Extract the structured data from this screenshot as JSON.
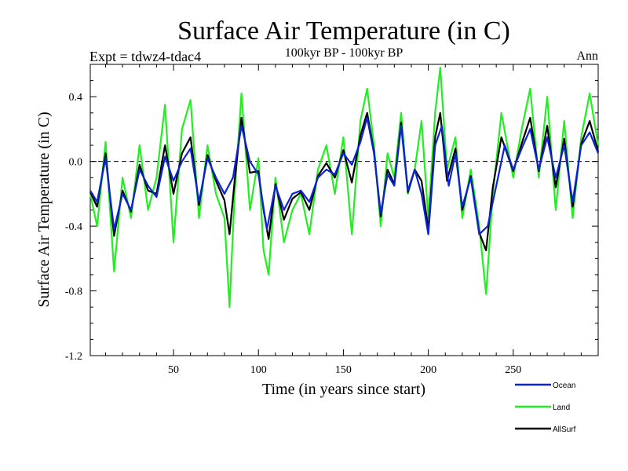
{
  "chart_data": {
    "type": "line",
    "title": "Surface Air Temperature (in C)",
    "subtitle": "100kyr BP - 100kyr BP",
    "left_label": "Expt = tdwz4-tdac4",
    "right_label": "Ann",
    "xlabel": "Time (in years since start)",
    "ylabel": "Surface Air Temperature (in C)",
    "xlim": [
      1,
      300
    ],
    "ylim": [
      -1.2,
      0.6
    ],
    "xticks": [
      50,
      100,
      150,
      200,
      250
    ],
    "xtick_labels": [
      "50",
      "100",
      "150",
      "200",
      "250"
    ],
    "yticks": [
      -1.2,
      -0.8,
      -0.4,
      0.0,
      0.4
    ],
    "ytick_labels": [
      "-1.2",
      "-0.8",
      "-0.4",
      "0.0",
      "0.4"
    ],
    "reference_line": 0.0,
    "series": [
      {
        "name": "Ocean",
        "color": "#0a22d8",
        "points": [
          [
            1,
            -0.18
          ],
          [
            5,
            -0.25
          ],
          [
            10,
            0.02
          ],
          [
            15,
            -0.42
          ],
          [
            20,
            -0.2
          ],
          [
            25,
            -0.3
          ],
          [
            30,
            -0.05
          ],
          [
            35,
            -0.15
          ],
          [
            40,
            -0.22
          ],
          [
            45,
            0.03
          ],
          [
            50,
            -0.12
          ],
          [
            55,
            0.0
          ],
          [
            60,
            0.08
          ],
          [
            65,
            -0.25
          ],
          [
            70,
            0.02
          ],
          [
            75,
            -0.1
          ],
          [
            80,
            -0.2
          ],
          [
            85,
            -0.1
          ],
          [
            90,
            0.22
          ],
          [
            95,
            0.0
          ],
          [
            100,
            -0.08
          ],
          [
            105,
            -0.42
          ],
          [
            110,
            -0.15
          ],
          [
            115,
            -0.3
          ],
          [
            120,
            -0.2
          ],
          [
            125,
            -0.18
          ],
          [
            130,
            -0.25
          ],
          [
            135,
            -0.1
          ],
          [
            140,
            -0.05
          ],
          [
            145,
            -0.08
          ],
          [
            150,
            0.05
          ],
          [
            155,
            -0.02
          ],
          [
            160,
            0.12
          ],
          [
            164,
            0.27
          ],
          [
            168,
            0.05
          ],
          [
            172,
            -0.32
          ],
          [
            176,
            -0.08
          ],
          [
            180,
            -0.15
          ],
          [
            184,
            0.22
          ],
          [
            188,
            -0.18
          ],
          [
            192,
            -0.05
          ],
          [
            196,
            -0.2
          ],
          [
            200,
            -0.45
          ],
          [
            204,
            0.1
          ],
          [
            208,
            0.22
          ],
          [
            212,
            -0.15
          ],
          [
            216,
            0.05
          ],
          [
            220,
            -0.28
          ],
          [
            225,
            -0.1
          ],
          [
            230,
            -0.45
          ],
          [
            235,
            -0.4
          ],
          [
            240,
            -0.15
          ],
          [
            245,
            0.1
          ],
          [
            250,
            -0.05
          ],
          [
            255,
            0.08
          ],
          [
            260,
            0.2
          ],
          [
            265,
            -0.05
          ],
          [
            270,
            0.15
          ],
          [
            275,
            -0.1
          ],
          [
            280,
            0.1
          ],
          [
            285,
            -0.25
          ],
          [
            290,
            0.1
          ],
          [
            295,
            0.18
          ],
          [
            300,
            0.05
          ]
        ]
      },
      {
        "name": "Land",
        "color": "#22ee22",
        "points": [
          [
            1,
            -0.2
          ],
          [
            5,
            -0.4
          ],
          [
            10,
            0.12
          ],
          [
            15,
            -0.68
          ],
          [
            20,
            -0.1
          ],
          [
            25,
            -0.35
          ],
          [
            30,
            0.1
          ],
          [
            35,
            -0.3
          ],
          [
            40,
            -0.1
          ],
          [
            45,
            0.35
          ],
          [
            50,
            -0.5
          ],
          [
            55,
            0.2
          ],
          [
            60,
            0.38
          ],
          [
            65,
            -0.35
          ],
          [
            70,
            0.1
          ],
          [
            75,
            -0.2
          ],
          [
            80,
            -0.35
          ],
          [
            83,
            -0.9
          ],
          [
            86,
            -0.2
          ],
          [
            90,
            0.42
          ],
          [
            95,
            -0.3
          ],
          [
            100,
            0.02
          ],
          [
            103,
            -0.55
          ],
          [
            106,
            -0.7
          ],
          [
            110,
            -0.1
          ],
          [
            115,
            -0.5
          ],
          [
            120,
            -0.3
          ],
          [
            125,
            -0.2
          ],
          [
            130,
            -0.45
          ],
          [
            135,
            -0.05
          ],
          [
            140,
            0.1
          ],
          [
            145,
            -0.2
          ],
          [
            150,
            0.15
          ],
          [
            155,
            -0.45
          ],
          [
            160,
            0.25
          ],
          [
            164,
            0.45
          ],
          [
            168,
            0.1
          ],
          [
            172,
            -0.4
          ],
          [
            176,
            0.05
          ],
          [
            180,
            -0.1
          ],
          [
            184,
            0.3
          ],
          [
            188,
            -0.2
          ],
          [
            192,
            -0.05
          ],
          [
            196,
            0.25
          ],
          [
            200,
            -0.35
          ],
          [
            204,
            0.3
          ],
          [
            207,
            0.58
          ],
          [
            211,
            -0.05
          ],
          [
            216,
            0.15
          ],
          [
            220,
            -0.35
          ],
          [
            225,
            -0.05
          ],
          [
            230,
            -0.4
          ],
          [
            234,
            -0.82
          ],
          [
            238,
            -0.2
          ],
          [
            243,
            0.3
          ],
          [
            250,
            -0.1
          ],
          [
            255,
            0.2
          ],
          [
            260,
            0.45
          ],
          [
            265,
            -0.1
          ],
          [
            270,
            0.4
          ],
          [
            275,
            -0.3
          ],
          [
            280,
            0.25
          ],
          [
            285,
            -0.35
          ],
          [
            290,
            0.15
          ],
          [
            295,
            0.42
          ],
          [
            300,
            0.1
          ]
        ]
      },
      {
        "name": "AllSurf",
        "color": "#000000",
        "points": [
          [
            1,
            -0.19
          ],
          [
            5,
            -0.28
          ],
          [
            10,
            0.05
          ],
          [
            15,
            -0.46
          ],
          [
            20,
            -0.18
          ],
          [
            25,
            -0.31
          ],
          [
            30,
            -0.02
          ],
          [
            35,
            -0.18
          ],
          [
            40,
            -0.2
          ],
          [
            45,
            0.1
          ],
          [
            50,
            -0.2
          ],
          [
            55,
            0.05
          ],
          [
            60,
            0.15
          ],
          [
            65,
            -0.27
          ],
          [
            70,
            0.04
          ],
          [
            75,
            -0.12
          ],
          [
            80,
            -0.24
          ],
          [
            83,
            -0.45
          ],
          [
            86,
            -0.12
          ],
          [
            90,
            0.27
          ],
          [
            95,
            -0.07
          ],
          [
            100,
            -0.06
          ],
          [
            103,
            -0.3
          ],
          [
            106,
            -0.48
          ],
          [
            110,
            -0.14
          ],
          [
            115,
            -0.36
          ],
          [
            120,
            -0.23
          ],
          [
            125,
            -0.19
          ],
          [
            130,
            -0.3
          ],
          [
            135,
            -0.09
          ],
          [
            140,
            -0.01
          ],
          [
            145,
            -0.1
          ],
          [
            150,
            0.07
          ],
          [
            155,
            -0.13
          ],
          [
            160,
            0.16
          ],
          [
            164,
            0.3
          ],
          [
            168,
            0.06
          ],
          [
            172,
            -0.34
          ],
          [
            176,
            -0.05
          ],
          [
            180,
            -0.14
          ],
          [
            184,
            0.24
          ],
          [
            188,
            -0.19
          ],
          [
            192,
            -0.05
          ],
          [
            196,
            -0.12
          ],
          [
            200,
            -0.42
          ],
          [
            204,
            0.15
          ],
          [
            207,
            0.3
          ],
          [
            211,
            -0.12
          ],
          [
            216,
            0.08
          ],
          [
            220,
            -0.3
          ],
          [
            225,
            -0.09
          ],
          [
            230,
            -0.44
          ],
          [
            234,
            -0.55
          ],
          [
            238,
            -0.16
          ],
          [
            243,
            0.15
          ],
          [
            250,
            -0.06
          ],
          [
            255,
            0.11
          ],
          [
            260,
            0.27
          ],
          [
            265,
            -0.06
          ],
          [
            270,
            0.22
          ],
          [
            275,
            -0.16
          ],
          [
            280,
            0.14
          ],
          [
            285,
            -0.28
          ],
          [
            290,
            0.11
          ],
          [
            295,
            0.25
          ],
          [
            300,
            0.06
          ]
        ]
      }
    ],
    "legend_position": "bottom-right"
  }
}
